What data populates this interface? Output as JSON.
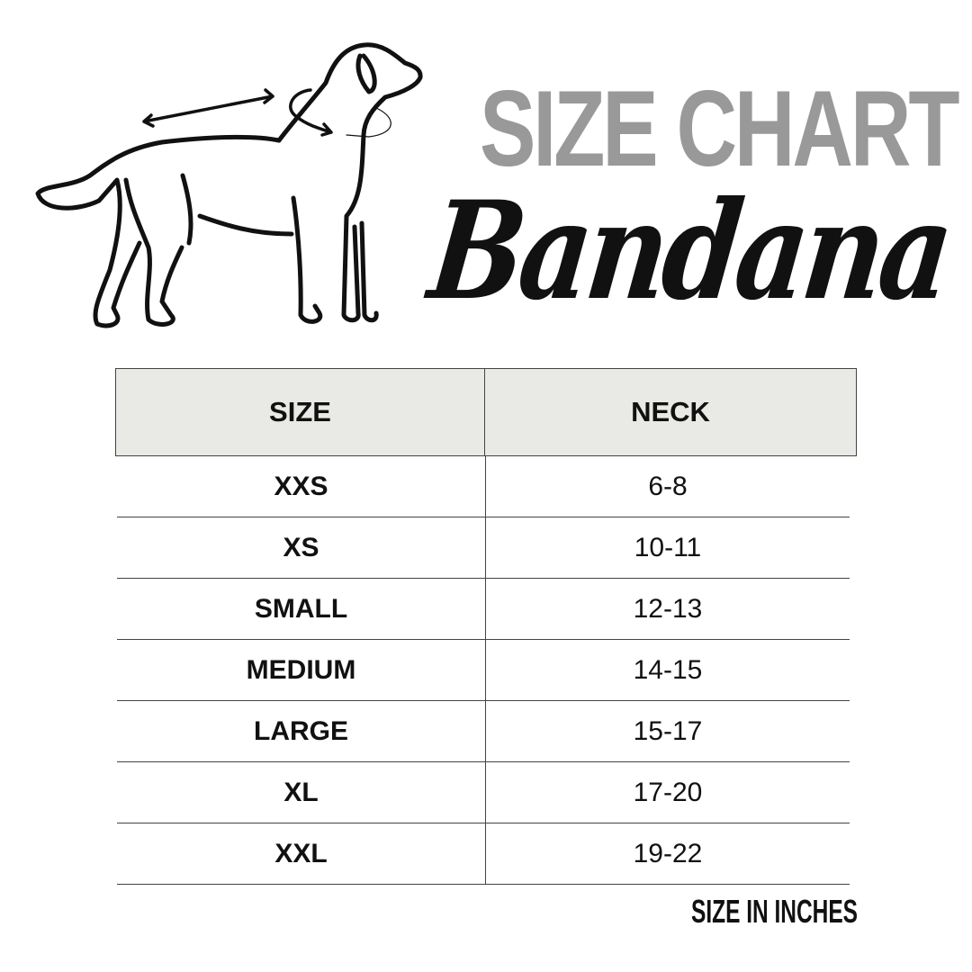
{
  "title": "SIZE CHART",
  "subtitle": "Bandana",
  "table": {
    "headers": [
      "SIZE",
      "NECK"
    ],
    "rows": [
      {
        "size": "XXS",
        "neck": "6-8"
      },
      {
        "size": "XS",
        "neck": "10-11"
      },
      {
        "size": "SMALL",
        "neck": "12-13"
      },
      {
        "size": "MEDIUM",
        "neck": "14-15"
      },
      {
        "size": "LARGE",
        "neck": "15-17"
      },
      {
        "size": "XL",
        "neck": "17-20"
      },
      {
        "size": "XXL",
        "neck": "19-22"
      }
    ]
  },
  "note": "SIZE IN INCHES",
  "colors": {
    "title": "#999999",
    "header_bg": "#e9e9e5",
    "text": "#111111"
  },
  "illustration": "dog-outline-with-neck-measurement-arrows"
}
